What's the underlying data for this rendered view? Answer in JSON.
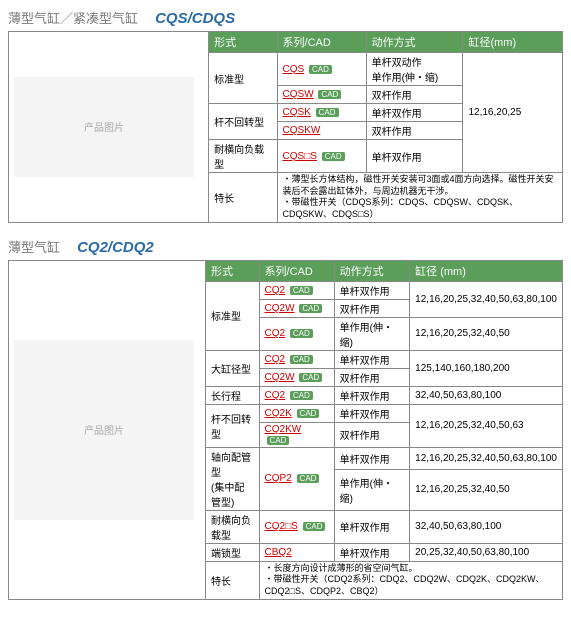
{
  "sec1": {
    "title_cn": "薄型气缸／紧凑型气缸",
    "title_en": "CQS/CDQS",
    "headers": {
      "h1": "形式",
      "h2": "系列/CAD",
      "h3": "动作方式",
      "h4": "缸径(mm)"
    },
    "img_label": "产品图片",
    "rows": {
      "r1_form": "标准型",
      "r1_series": "CQS",
      "r1_method": "单杆双动作\n单作用(伸・缩)",
      "r2_series": "CQSW",
      "r2_method": "双杆作用",
      "r3_form": "杆不回转型",
      "r3_series": "CQSK",
      "r3_method": "单杆双作用",
      "r4_series": "CQSKW",
      "r4_method": "双杆作用",
      "r5_form": "耐横向负载型",
      "r5_series": "CQS□S",
      "r5_method": "单杆双作用",
      "bore": "12,16,20,25",
      "feat_label": "特长",
      "feat_text": "・薄型长方体结构，磁性开关安装可3面或4面方向选择。磁性开关安装后不会露出缸体外，与周边机器无干涉。\n・带磁性开关（CDQS系列：CDQS、CDQSW、CDQSK、CDQSKW、CDQS□S）"
    }
  },
  "sec2": {
    "title_cn": "薄型气缸",
    "title_en": "CQ2/CDQ2",
    "headers": {
      "h1": "形式",
      "h2": "系列/CAD",
      "h3": "动作方式",
      "h4": "缸径 (mm)"
    },
    "img_label": "产品图片",
    "rows": {
      "r1_form": "标准型",
      "r1_series": "CQ2",
      "r1_method": "单杆双作用",
      "r1_bore": "12,16,20,25,32,40,50,63,80,100",
      "r2_series": "CQ2W",
      "r2_method": "双杆作用",
      "r3_series": "CQ2",
      "r3_method": "单作用(伸・缩)",
      "r3_bore": "12,16,20,25,32,40,50",
      "r4_form": "大缸径型",
      "r4_series": "CQ2",
      "r4_method": "单杆双作用",
      "r4_bore": "125,140,160,180,200",
      "r5_series": "CQ2W",
      "r5_method": "双杆作用",
      "r6_form": "长行程",
      "r6_series": "CQ2",
      "r6_method": "单杆双作用",
      "r6_bore": "32,40,50,63,80,100",
      "r7_form": "杆不回转型",
      "r7_series": "CQ2K",
      "r7_method": "单杆双作用",
      "r7_bore": "12,16,20,25,32,40,50,63",
      "r8_series": "CQ2KW",
      "r8_method": "双杆作用",
      "r9_form": "轴向配管型\n(集中配管型)",
      "r9_series": "CQP2",
      "r9_method": "单杆双作用",
      "r9_bore": "12,16,20,25,32,40,50,63,80,100",
      "r10_method": "单作用(伸・缩)",
      "r10_bore": "12,16,20,25,32,40,50",
      "r11_form": "耐横向负载型",
      "r11_series": "CQ2□S",
      "r11_method": "单杆双作用",
      "r11_bore": "32,40,50,63,80,100",
      "r12_form": "端锁型",
      "r12_series": "CBQ2",
      "r12_method": "单杆双作用",
      "r12_bore": "20,25,32,40,50,63,80,100",
      "feat_label": "特长",
      "feat_text": "・长度方向设计成薄形的省空间气缸。\n・带磁性开关（CDQ2系列：CDQ2、CDQ2W、CDQ2K、CDQ2KW、CDQ2□S、CDQP2、CBQ2）"
    }
  },
  "cad": "CAD"
}
